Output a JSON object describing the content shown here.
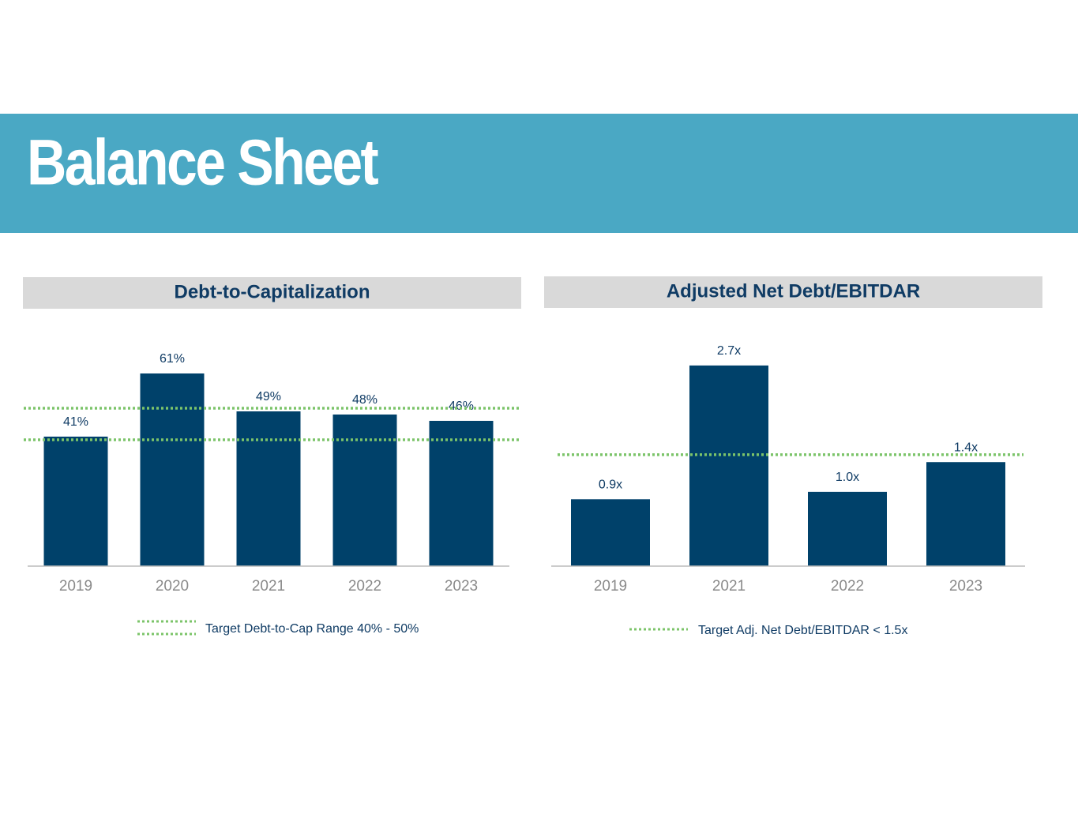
{
  "title": "Balance Sheet",
  "chart_data": [
    {
      "type": "bar",
      "title": "Debt-to-Capitalization",
      "categories": [
        "2019",
        "2020",
        "2021",
        "2022",
        "2023"
      ],
      "values": [
        41,
        61,
        49,
        48,
        46
      ],
      "value_labels": [
        "41%",
        "61%",
        "49%",
        "48%",
        "46%"
      ],
      "color": "#00416a",
      "ylim": [
        0,
        80
      ],
      "reference_lines": [
        40,
        50
      ],
      "reference_color": "#7cc46a",
      "reference_label": "Target Debt-to-Cap Range 40% - 50%"
    },
    {
      "type": "bar",
      "title": "Adjusted Net Debt/EBITDAR",
      "categories": [
        "2019",
        "2021",
        "2022",
        "2023"
      ],
      "values": [
        0.9,
        2.7,
        1.0,
        1.4
      ],
      "value_labels": [
        "0.9x",
        "2.7x",
        "1.0x",
        "1.4x"
      ],
      "color": "#00416a",
      "ylim": [
        0,
        3.4
      ],
      "reference_lines": [
        1.5
      ],
      "reference_color": "#7cc46a",
      "reference_label": "Target Adj. Net Debt/EBITDAR < 1.5x"
    }
  ]
}
